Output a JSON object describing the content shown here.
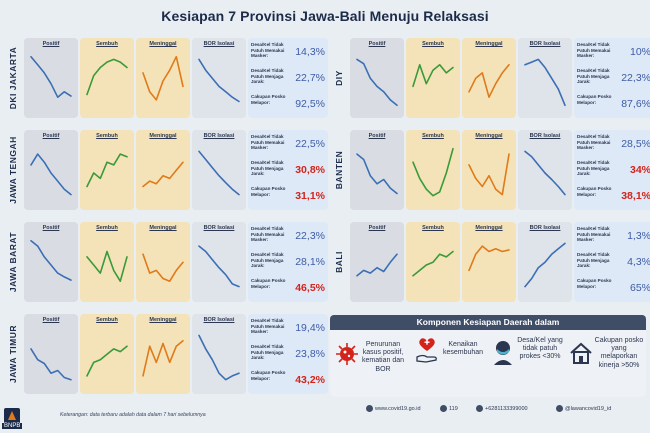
{
  "title": "Kesiapan 7 Provinsi Jawa-Bali Menuju Relaksasi",
  "panel_labels": {
    "positif": "Positif",
    "sembuh": "Sembuh",
    "meninggal": "Meninggal",
    "bor": "BOR Isolasi"
  },
  "stat_labels": {
    "desa_sedang": "Desa/Kel Tidak Patuh Memakai Masker:",
    "desa_jarak": "Desa/Kel Tidak Patuh Menjaga Jarak:",
    "cakupan": "Cakupan Posko Melapor:"
  },
  "provinces": [
    {
      "name": "DKI JAKARTA",
      "masker": "14,3%",
      "jarak": "22,7%",
      "posko": "92,5%",
      "red": [
        false,
        false,
        false
      ]
    },
    {
      "name": "JAWA TENGAH",
      "masker": "22,5%",
      "jarak": "30,8%",
      "posko": "31,1%",
      "red": [
        false,
        true,
        true
      ]
    },
    {
      "name": "JAWA BARAT",
      "masker": "22,3%",
      "jarak": "28,1%",
      "posko": "46,5%",
      "red": [
        false,
        false,
        true
      ]
    },
    {
      "name": "JAWA TIMUR",
      "masker": "19,4%",
      "jarak": "23,8%",
      "posko": "43,2%",
      "red": [
        false,
        false,
        true
      ]
    },
    {
      "name": "DIY",
      "masker": "10%",
      "jarak": "22,3%",
      "posko": "87,6%",
      "red": [
        false,
        false,
        false
      ]
    },
    {
      "name": "BANTEN",
      "masker": "28,5%",
      "jarak": "34%",
      "posko": "38,1%",
      "red": [
        false,
        true,
        true
      ]
    },
    {
      "name": "BALI",
      "masker": "1,3%",
      "jarak": "4,3%",
      "posko": "65%",
      "red": [
        false,
        false,
        false
      ]
    }
  ],
  "components": {
    "heading": "Komponen Kesiapan Daerah dalam",
    "items": [
      "Penurunan kasus positif, kematian dan BOR",
      "Kenaikan kesembuhan",
      "Desa/Kel yang tidak patuh prokes <30%",
      "Cakupan posko yang melaporkan kinerja >50%"
    ]
  },
  "footer": {
    "website": "www.covid19.go.id",
    "hotline": "119",
    "whatsapp": "+6281133399000",
    "social": "@lawancovid19_id"
  },
  "note": "Keterangan: data terbaru adalah data dalam 7 hari sebelumnya",
  "watermark": "BNPB",
  "colors": {
    "positif": "#3b6fb5",
    "sembuh": "#3a9a3a",
    "meninggal": "#e07a1a",
    "bor": "#3b6fb5",
    "red": "#d4231a"
  }
}
